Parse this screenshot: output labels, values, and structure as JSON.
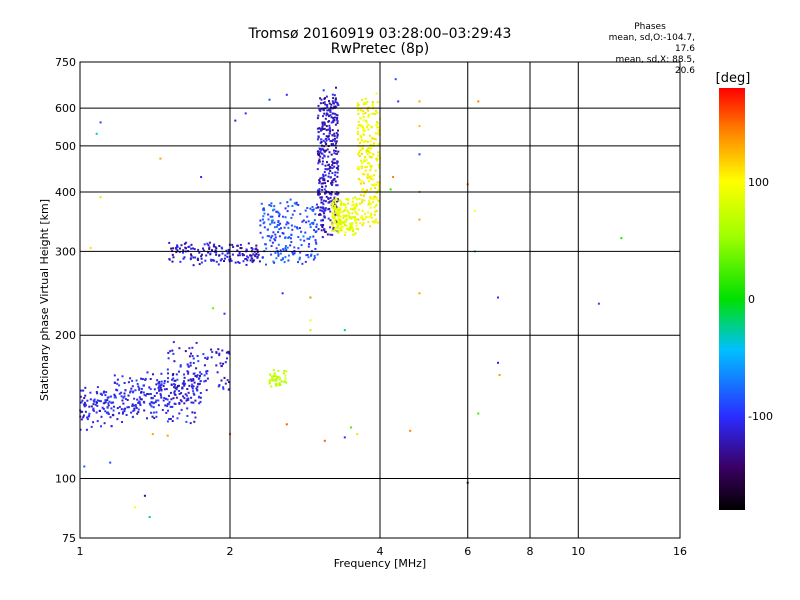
{
  "title": "Tromsø 20160919 03:28:00–03:29:43",
  "subtitle": "RwPretec (8p)",
  "stats": {
    "header": "Phases",
    "line1": "mean, sd,O:-104.7, 17.6",
    "line2": "mean, sd,X:  88.5, 20.6"
  },
  "colorbar": {
    "label": "[deg]",
    "ticks": [
      {
        "value": 100,
        "label": "100"
      },
      {
        "value": 0,
        "label": "0"
      },
      {
        "value": -100,
        "label": "-100"
      }
    ],
    "range": [
      -180,
      180
    ]
  },
  "chart_data": {
    "type": "scatter",
    "title": "Tromsø 20160919 03:28:00–03:29:43",
    "subtitle": "RwPretec (8p)",
    "xlabel": "Frequency [MHz]",
    "ylabel": "Stationary phase Virtual Height [km]",
    "x_scale": "log",
    "y_scale": "log",
    "xlim": [
      1,
      16
    ],
    "ylim": [
      75,
      750
    ],
    "xticks": [
      {
        "v": 1,
        "l": "1"
      },
      {
        "v": 2,
        "l": "2"
      },
      {
        "v": 4,
        "l": "4"
      },
      {
        "v": 6,
        "l": "6"
      },
      {
        "v": 8,
        "l": "8"
      },
      {
        "v": 10,
        "l": "10"
      },
      {
        "v": 16,
        "l": "16"
      }
    ],
    "yticks": [
      {
        "v": 75,
        "l": "75"
      },
      {
        "v": 100,
        "l": "100"
      },
      {
        "v": 200,
        "l": "200"
      },
      {
        "v": 300,
        "l": "300"
      },
      {
        "v": 400,
        "l": "400"
      },
      {
        "v": 500,
        "l": "500"
      },
      {
        "v": 600,
        "l": "600"
      },
      {
        "v": 750,
        "l": "750"
      }
    ],
    "grid": true,
    "color_scale": "rainbow phase [deg]",
    "clusters": [
      {
        "trace": "O",
        "fmin": 1.0,
        "fmax": 1.75,
        "hmin": 130,
        "hmax": 150,
        "hrise": 30,
        "spread": 0.09,
        "phase": -115,
        "n": 380
      },
      {
        "trace": "O",
        "fmin": 1.5,
        "fmax": 2.0,
        "hmin": 155,
        "hmax": 190,
        "hrise": 0,
        "spread": 0.06,
        "phase": -120,
        "n": 90
      },
      {
        "trace": "O",
        "fmin": 1.5,
        "fmax": 2.3,
        "hmin": 283,
        "hmax": 310,
        "hrise": 0,
        "spread": 0.03,
        "phase": -125,
        "n": 160
      },
      {
        "trace": "O",
        "fmin": 2.3,
        "fmax": 3.0,
        "hmin": 285,
        "hmax": 380,
        "hrise": 0,
        "spread": 0.04,
        "phase": -95,
        "n": 200
      },
      {
        "trace": "O",
        "fmin": 3.0,
        "fmax": 3.3,
        "hmin": 330,
        "hmax": 640,
        "hrise": 0,
        "spread": 0.08,
        "phase": -125,
        "n": 380
      },
      {
        "trace": "X",
        "fmin": 3.2,
        "fmax": 3.6,
        "hmin": 330,
        "hmax": 385,
        "hrise": 0,
        "spread": 0.04,
        "phase": 88,
        "n": 180
      },
      {
        "trace": "X",
        "fmin": 3.6,
        "fmax": 4.0,
        "hmin": 340,
        "hmax": 620,
        "hrise": 0,
        "spread": 0.08,
        "phase": 95,
        "n": 260
      },
      {
        "trace": "X",
        "fmin": 2.4,
        "fmax": 2.6,
        "hmin": 157,
        "hmax": 168,
        "hrise": 0,
        "spread": 0.02,
        "phase": 70,
        "n": 40
      }
    ],
    "isolated_points": [
      {
        "x": 2.05,
        "y": 565,
        "phase": -120
      },
      {
        "x": 2.15,
        "y": 585,
        "phase": -110
      },
      {
        "x": 2.4,
        "y": 625,
        "phase": -100
      },
      {
        "x": 2.6,
        "y": 640,
        "phase": -110
      },
      {
        "x": 4.3,
        "y": 690,
        "phase": -100
      },
      {
        "x": 4.35,
        "y": 620,
        "phase": -110
      },
      {
        "x": 4.8,
        "y": 620,
        "phase": 130
      },
      {
        "x": 4.8,
        "y": 550,
        "phase": 120
      },
      {
        "x": 4.8,
        "y": 480,
        "phase": -100
      },
      {
        "x": 4.8,
        "y": 400,
        "phase": 140
      },
      {
        "x": 4.8,
        "y": 350,
        "phase": 130
      },
      {
        "x": 4.8,
        "y": 245,
        "phase": 130
      },
      {
        "x": 4.25,
        "y": 430,
        "phase": 140
      },
      {
        "x": 4.2,
        "y": 405,
        "phase": 10
      },
      {
        "x": 6.3,
        "y": 620,
        "phase": 140
      },
      {
        "x": 6.2,
        "y": 365,
        "phase": 100
      },
      {
        "x": 6.2,
        "y": 300,
        "phase": -40
      },
      {
        "x": 6.0,
        "y": 415,
        "phase": 150
      },
      {
        "x": 6.9,
        "y": 240,
        "phase": -110
      },
      {
        "x": 6.9,
        "y": 175,
        "phase": -120
      },
      {
        "x": 6.95,
        "y": 165,
        "phase": 130
      },
      {
        "x": 6.3,
        "y": 137,
        "phase": 20
      },
      {
        "x": 6.0,
        "y": 98,
        "phase": -160
      },
      {
        "x": 11.0,
        "y": 233,
        "phase": -100
      },
      {
        "x": 12.2,
        "y": 320,
        "phase": 10
      },
      {
        "x": 4.6,
        "y": 126,
        "phase": 140
      },
      {
        "x": 3.4,
        "y": 122,
        "phase": -110
      },
      {
        "x": 3.6,
        "y": 124,
        "phase": 110
      },
      {
        "x": 3.1,
        "y": 120,
        "phase": 150
      },
      {
        "x": 2.0,
        "y": 124,
        "phase": 150
      },
      {
        "x": 1.5,
        "y": 123,
        "phase": 130
      },
      {
        "x": 1.4,
        "y": 124,
        "phase": 130
      },
      {
        "x": 1.15,
        "y": 108,
        "phase": -100
      },
      {
        "x": 1.02,
        "y": 106,
        "phase": -90
      },
      {
        "x": 1.35,
        "y": 92,
        "phase": -140
      },
      {
        "x": 1.29,
        "y": 87,
        "phase": 100
      },
      {
        "x": 1.38,
        "y": 83,
        "phase": -20
      },
      {
        "x": 1.08,
        "y": 530,
        "phase": -40
      },
      {
        "x": 1.1,
        "y": 560,
        "phase": -100
      },
      {
        "x": 1.1,
        "y": 390,
        "phase": 60
      },
      {
        "x": 1.45,
        "y": 470,
        "phase": 130
      },
      {
        "x": 1.75,
        "y": 430,
        "phase": -110
      },
      {
        "x": 2.55,
        "y": 245,
        "phase": -110
      },
      {
        "x": 2.9,
        "y": 240,
        "phase": 140
      },
      {
        "x": 2.9,
        "y": 215,
        "phase": 90
      },
      {
        "x": 2.9,
        "y": 205,
        "phase": 60
      },
      {
        "x": 3.4,
        "y": 205,
        "phase": -20
      },
      {
        "x": 1.85,
        "y": 228,
        "phase": 30
      },
      {
        "x": 1.95,
        "y": 222,
        "phase": -110
      },
      {
        "x": 2.6,
        "y": 130,
        "phase": 150
      },
      {
        "x": 3.5,
        "y": 128,
        "phase": 20
      },
      {
        "x": 1.05,
        "y": 305,
        "phase": 110
      }
    ]
  }
}
